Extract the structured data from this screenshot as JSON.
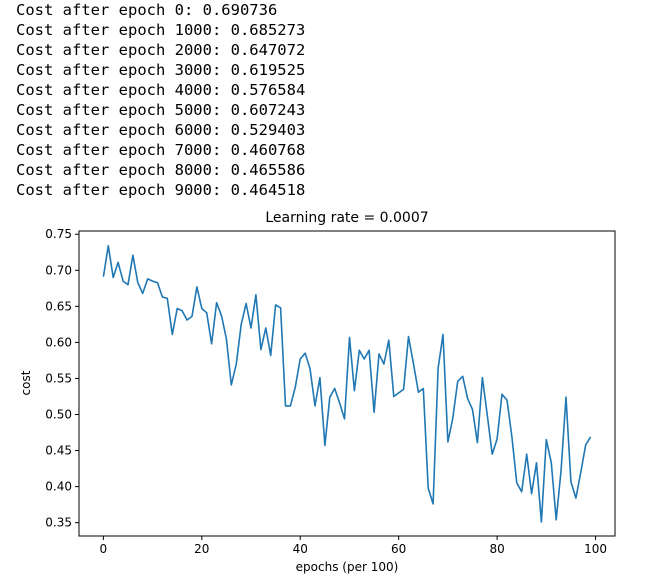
{
  "log_lines": [
    "Cost after epoch 0: 0.690736",
    "Cost after epoch 1000: 0.685273",
    "Cost after epoch 2000: 0.647072",
    "Cost after epoch 3000: 0.619525",
    "Cost after epoch 4000: 0.576584",
    "Cost after epoch 5000: 0.607243",
    "Cost after epoch 6000: 0.529403",
    "Cost after epoch 7000: 0.460768",
    "Cost after epoch 8000: 0.465586",
    "Cost after epoch 9000: 0.464518"
  ],
  "chart_data": {
    "type": "line",
    "title": "Learning rate = 0.0007",
    "xlabel": "epochs (per 100)",
    "ylabel": "cost",
    "xlim": [
      -4.95,
      103.95
    ],
    "ylim": [
      0.3315,
      0.7545
    ],
    "xticks": [
      "0",
      "20",
      "40",
      "60",
      "80",
      "100"
    ],
    "xtick_values": [
      0,
      20,
      40,
      60,
      80,
      100
    ],
    "yticks": [
      "0.35",
      "0.40",
      "0.45",
      "0.50",
      "0.55",
      "0.60",
      "0.65",
      "0.70",
      "0.75"
    ],
    "ytick_values": [
      0.35,
      0.4,
      0.45,
      0.5,
      0.55,
      0.6,
      0.65,
      0.7,
      0.75
    ],
    "grid": false,
    "line_color": "#1f77b4",
    "series": [
      {
        "x": [
          0,
          1,
          2,
          3,
          4,
          5,
          6,
          7,
          8,
          9,
          10,
          11,
          12,
          13,
          14,
          15,
          16,
          17,
          18,
          19,
          20,
          21,
          22,
          23,
          24,
          25,
          26,
          27,
          28,
          29,
          30,
          31,
          32,
          33,
          34,
          35,
          36,
          37,
          38,
          39,
          40,
          41,
          42,
          43,
          44,
          45,
          46,
          47,
          48,
          49,
          50,
          51,
          52,
          53,
          54,
          55,
          56,
          57,
          58,
          59,
          60,
          61,
          62,
          63,
          64,
          65,
          66,
          67,
          68,
          69,
          70,
          71,
          72,
          73,
          74,
          75,
          76,
          77,
          78,
          79,
          80,
          81,
          82,
          83,
          84,
          85,
          86,
          87,
          88,
          89,
          90,
          91,
          92,
          93,
          94,
          95,
          96,
          97,
          98,
          99
        ],
        "values": [
          0.691,
          0.734,
          0.69,
          0.711,
          0.685,
          0.68,
          0.721,
          0.683,
          0.668,
          0.688,
          0.685,
          0.683,
          0.663,
          0.661,
          0.611,
          0.647,
          0.644,
          0.631,
          0.636,
          0.677,
          0.647,
          0.641,
          0.598,
          0.655,
          0.637,
          0.605,
          0.541,
          0.57,
          0.625,
          0.654,
          0.62,
          0.666,
          0.59,
          0.62,
          0.582,
          0.652,
          0.648,
          0.512,
          0.512,
          0.538,
          0.577,
          0.585,
          0.563,
          0.512,
          0.551,
          0.457,
          0.524,
          0.536,
          0.516,
          0.494,
          0.607,
          0.533,
          0.589,
          0.577,
          0.589,
          0.503,
          0.584,
          0.57,
          0.603,
          0.525,
          0.53,
          0.535,
          0.608,
          0.571,
          0.531,
          0.536,
          0.398,
          0.376,
          0.564,
          0.611,
          0.462,
          0.495,
          0.546,
          0.553,
          0.522,
          0.507,
          0.461,
          0.551,
          0.499,
          0.445,
          0.466,
          0.528,
          0.52,
          0.469,
          0.405,
          0.393,
          0.445,
          0.39,
          0.433,
          0.351,
          0.465,
          0.433,
          0.354,
          0.423,
          0.524,
          0.407,
          0.384,
          0.42,
          0.458,
          0.469
        ]
      }
    ]
  }
}
